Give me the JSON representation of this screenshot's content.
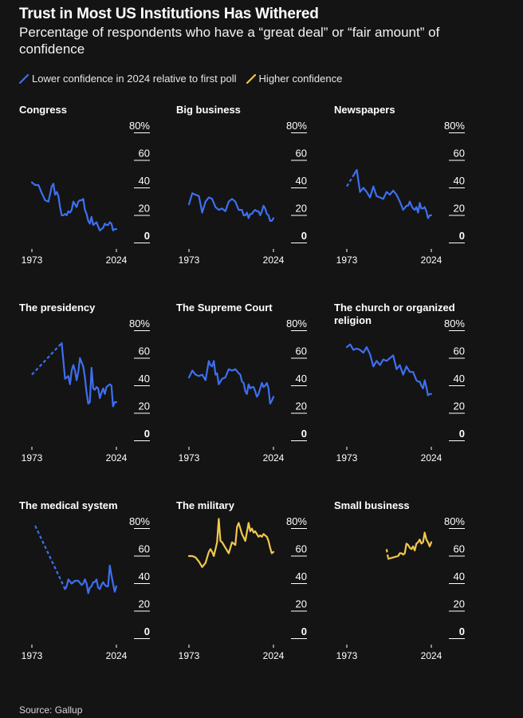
{
  "header": {
    "title": "Trust in Most US Institutions Has Withered",
    "subtitle": "Percentage of respondents who have a “great deal” or “fair amount” of confidence"
  },
  "legend": {
    "lower": "Lower confidence in 2024 relative to first poll",
    "higher": "Higher confidence"
  },
  "colors": {
    "lower": "#3d6ff0",
    "higher": "#f2c94c",
    "background": "#141414",
    "grid": "#ffffff"
  },
  "source": "Source: Gallup",
  "chart_data": [
    {
      "type": "line",
      "title": "Congress",
      "trend": "lower",
      "ylim": [
        0,
        80
      ],
      "y_ticks": [
        "80%",
        "60",
        "40",
        "20",
        "0"
      ],
      "x_ticks": [
        "1973",
        "2024"
      ],
      "xlim": [
        1973,
        2024
      ],
      "dashed_segment": [],
      "x": [
        1973,
        1975,
        1977,
        1979,
        1981,
        1983,
        1985,
        1986,
        1987,
        1988,
        1989,
        1990,
        1991,
        1992,
        1993,
        1994,
        1995,
        1996,
        1997,
        1998,
        1999,
        2000,
        2001,
        2002,
        2003,
        2004,
        2005,
        2006,
        2007,
        2008,
        2009,
        2010,
        2011,
        2012,
        2013,
        2014,
        2015,
        2016,
        2017,
        2018,
        2019,
        2020,
        2021,
        2022,
        2023,
        2024
      ],
      "y": [
        42,
        40,
        40,
        34,
        29,
        28,
        39,
        41,
        33,
        35,
        32,
        24,
        18,
        18,
        19,
        18,
        21,
        20,
        22,
        28,
        26,
        24,
        28,
        29,
        29,
        30,
        22,
        19,
        14,
        12,
        17,
        11,
        12,
        13,
        10,
        7,
        8,
        9,
        12,
        11,
        11,
        13,
        12,
        7,
        8,
        8
      ]
    },
    {
      "type": "line",
      "title": "Big business",
      "trend": "lower",
      "ylim": [
        0,
        80
      ],
      "y_ticks": [
        "80%",
        "60",
        "40",
        "20",
        "0"
      ],
      "x_ticks": [
        "1973",
        "2024"
      ],
      "xlim": [
        1973,
        2024
      ],
      "dashed_segment": [],
      "x": [
        1973,
        1975,
        1977,
        1979,
        1981,
        1983,
        1985,
        1987,
        1989,
        1991,
        1993,
        1995,
        1997,
        1999,
        2001,
        2003,
        2005,
        2006,
        2007,
        2008,
        2009,
        2010,
        2011,
        2012,
        2013,
        2014,
        2015,
        2016,
        2017,
        2018,
        2019,
        2020,
        2021,
        2022,
        2023,
        2024
      ],
      "y": [
        26,
        34,
        33,
        32,
        20,
        28,
        31,
        30,
        24,
        22,
        23,
        21,
        28,
        30,
        28,
        22,
        22,
        18,
        18,
        20,
        16,
        19,
        19,
        21,
        22,
        21,
        21,
        18,
        21,
        25,
        23,
        19,
        18,
        14,
        14,
        16
      ]
    },
    {
      "type": "line",
      "title": "Newspapers",
      "trend": "lower",
      "ylim": [
        0,
        80
      ],
      "y_ticks": [
        "80%",
        "60",
        "40",
        "20",
        "0"
      ],
      "x_ticks": [
        "1973",
        "2024"
      ],
      "xlim": [
        1973,
        2024
      ],
      "dashed_segment": [
        1973,
        1977
      ],
      "x": [
        1973,
        1977,
        1979,
        1981,
        1983,
        1985,
        1987,
        1989,
        1991,
        1993,
        1995,
        1997,
        1999,
        2001,
        2003,
        2005,
        2007,
        2009,
        2010,
        2011,
        2012,
        2013,
        2014,
        2015,
        2016,
        2017,
        2018,
        2019,
        2020,
        2021,
        2022,
        2023,
        2024
      ],
      "y": [
        39,
        47,
        51,
        35,
        38,
        35,
        31,
        39,
        32,
        31,
        30,
        35,
        33,
        36,
        33,
        28,
        22,
        25,
        25,
        28,
        25,
        23,
        22,
        24,
        20,
        27,
        23,
        23,
        24,
        21,
        16,
        18,
        18
      ]
    },
    {
      "type": "line",
      "title": "The presidency",
      "trend": "lower",
      "ylim": [
        0,
        80
      ],
      "y_ticks": [
        "80%",
        "60",
        "40",
        "20",
        "0"
      ],
      "x_ticks": [
        "1973",
        "2024"
      ],
      "xlim": [
        1973,
        2024
      ],
      "dashed_segment": [
        1973,
        1991
      ],
      "x": [
        1973,
        1991,
        1993,
        1995,
        1996,
        1997,
        1998,
        1999,
        2000,
        2001,
        2002,
        2003,
        2004,
        2005,
        2006,
        2007,
        2008,
        2009,
        2010,
        2011,
        2012,
        2013,
        2014,
        2015,
        2016,
        2017,
        2018,
        2019,
        2020,
        2021,
        2022,
        2023,
        2024
      ],
      "y": [
        46,
        69,
        43,
        45,
        39,
        49,
        53,
        49,
        42,
        48,
        58,
        55,
        52,
        44,
        33,
        25,
        26,
        51,
        36,
        35,
        37,
        36,
        29,
        33,
        36,
        32,
        37,
        38,
        39,
        38,
        23,
        26,
        26
      ]
    },
    {
      "type": "line",
      "title": "The Supreme Court",
      "trend": "lower",
      "ylim": [
        0,
        80
      ],
      "y_ticks": [
        "80%",
        "60",
        "40",
        "20",
        "0"
      ],
      "x_ticks": [
        "1973",
        "2024"
      ],
      "xlim": [
        1973,
        2024
      ],
      "dashed_segment": [],
      "x": [
        1973,
        1975,
        1977,
        1979,
        1981,
        1983,
        1985,
        1986,
        1987,
        1988,
        1989,
        1990,
        1991,
        1993,
        1995,
        1997,
        1999,
        2001,
        2003,
        2004,
        2005,
        2006,
        2007,
        2008,
        2009,
        2010,
        2011,
        2012,
        2013,
        2014,
        2015,
        2016,
        2017,
        2018,
        2019,
        2020,
        2021,
        2022,
        2023,
        2024
      ],
      "y": [
        44,
        49,
        46,
        45,
        46,
        42,
        56,
        53,
        52,
        56,
        46,
        47,
        39,
        43,
        44,
        50,
        49,
        50,
        47,
        46,
        41,
        40,
        34,
        32,
        39,
        36,
        37,
        37,
        34,
        30,
        32,
        36,
        40,
        37,
        38,
        40,
        36,
        25,
        27,
        30
      ]
    },
    {
      "type": "line",
      "title": "The church or organized religion",
      "trend": "lower",
      "ylim": [
        0,
        80
      ],
      "y_ticks": [
        "80%",
        "60",
        "40",
        "20",
        "0"
      ],
      "x_ticks": [
        "1973",
        "2024"
      ],
      "xlim": [
        1973,
        2024
      ],
      "dashed_segment": [],
      "x": [
        1973,
        1975,
        1977,
        1979,
        1981,
        1983,
        1985,
        1987,
        1989,
        1991,
        1993,
        1995,
        1997,
        1999,
        2001,
        2003,
        2005,
        2007,
        2009,
        2011,
        2013,
        2015,
        2016,
        2017,
        2018,
        2019,
        2020,
        2021,
        2022,
        2023,
        2024
      ],
      "y": [
        66,
        68,
        64,
        65,
        64,
        62,
        66,
        61,
        52,
        56,
        53,
        57,
        56,
        58,
        60,
        50,
        53,
        46,
        52,
        48,
        48,
        42,
        41,
        41,
        38,
        36,
        42,
        37,
        31,
        32,
        32
      ]
    },
    {
      "type": "line",
      "title": "The medical system",
      "trend": "lower",
      "ylim": [
        0,
        80
      ],
      "y_ticks": [
        "80%",
        "60",
        "40",
        "20",
        "0"
      ],
      "x_ticks": [
        "1973",
        "2024"
      ],
      "xlim": [
        1973,
        2024
      ],
      "dashed_segment": [
        1975,
        1993
      ],
      "x": [
        1975,
        1993,
        1994,
        1995,
        1997,
        1999,
        2001,
        2003,
        2004,
        2005,
        2006,
        2007,
        2008,
        2009,
        2010,
        2011,
        2012,
        2013,
        2014,
        2015,
        2016,
        2017,
        2018,
        2019,
        2020,
        2021,
        2022,
        2023,
        2024
      ],
      "y": [
        80,
        34,
        36,
        41,
        38,
        40,
        40,
        37,
        38,
        41,
        38,
        31,
        35,
        36,
        39,
        39,
        41,
        35,
        34,
        37,
        39,
        37,
        36,
        36,
        51,
        44,
        38,
        32,
        36
      ]
    },
    {
      "type": "line",
      "title": "The military",
      "trend": "higher",
      "ylim": [
        0,
        80
      ],
      "y_ticks": [
        "80%",
        "60",
        "40",
        "20",
        "0"
      ],
      "x_ticks": [
        "1973",
        "2024"
      ],
      "xlim": [
        1973,
        2024
      ],
      "dashed_segment": [],
      "x": [
        1973,
        1975,
        1977,
        1979,
        1981,
        1983,
        1985,
        1986,
        1987,
        1988,
        1989,
        1990,
        1991,
        1992,
        1993,
        1995,
        1997,
        1999,
        2001,
        2002,
        2003,
        2005,
        2007,
        2009,
        2010,
        2011,
        2012,
        2013,
        2014,
        2015,
        2016,
        2017,
        2018,
        2019,
        2020,
        2021,
        2022,
        2023,
        2024
      ],
      "y": [
        58,
        58,
        57,
        54,
        50,
        53,
        61,
        63,
        61,
        58,
        63,
        68,
        85,
        69,
        68,
        64,
        60,
        68,
        66,
        79,
        82,
        74,
        69,
        82,
        76,
        78,
        75,
        76,
        74,
        72,
        73,
        72,
        74,
        73,
        72,
        69,
        64,
        60,
        61
      ]
    },
    {
      "type": "line",
      "title": "Small business",
      "trend": "higher",
      "ylim": [
        0,
        80
      ],
      "y_ticks": [
        "80%",
        "60",
        "40",
        "20",
        "0"
      ],
      "x_ticks": [
        "1973",
        "2024"
      ],
      "xlim": [
        1973,
        2024
      ],
      "dashed_segment": [
        1998,
        2004
      ],
      "x": [
        1997,
        1998,
        2004,
        2005,
        2006,
        2007,
        2008,
        2009,
        2010,
        2011,
        2012,
        2013,
        2014,
        2015,
        2016,
        2017,
        2018,
        2019,
        2020,
        2021,
        2022,
        2023,
        2024
      ],
      "y": [
        63,
        56,
        58,
        60,
        60,
        59,
        60,
        67,
        66,
        64,
        63,
        65,
        62,
        67,
        68,
        70,
        67,
        68,
        75,
        70,
        68,
        65,
        68
      ]
    }
  ]
}
